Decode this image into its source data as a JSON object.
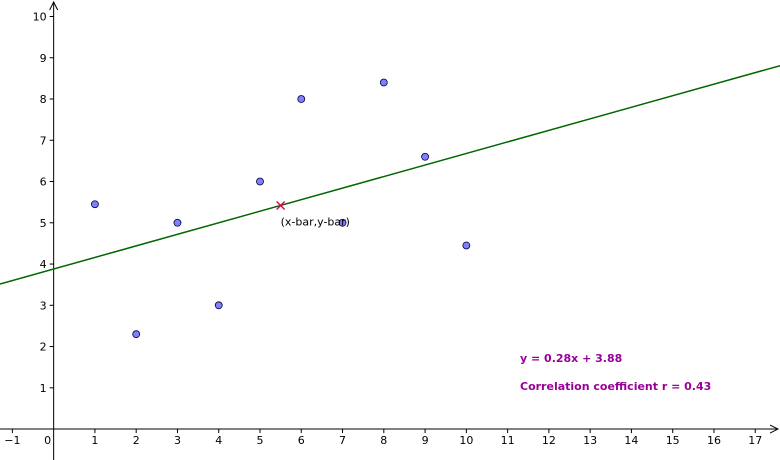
{
  "chart_data": {
    "type": "scatter",
    "title": "",
    "xlabel": "",
    "ylabel": "",
    "xlim": [
      -1.3,
      17.6
    ],
    "ylim": [
      -0.75,
      10.4
    ],
    "x_ticks": [
      -1,
      0,
      1,
      2,
      3,
      4,
      5,
      6,
      7,
      8,
      9,
      10,
      11,
      12,
      13,
      14,
      15,
      16,
      17
    ],
    "x_tick_labels": [
      "−1",
      "0",
      "1",
      "2",
      "3",
      "4",
      "5",
      "6",
      "7",
      "8",
      "9",
      "10",
      "11",
      "12",
      "13",
      "14",
      "15",
      "16",
      "17"
    ],
    "y_ticks": [
      1,
      2,
      3,
      4,
      5,
      6,
      7,
      8,
      9,
      10
    ],
    "y_tick_labels": [
      "1",
      "2",
      "3",
      "4",
      "5",
      "6",
      "7",
      "8",
      "9",
      "10"
    ],
    "grid": false,
    "points": [
      {
        "x": 1,
        "y": 5.45
      },
      {
        "x": 2,
        "y": 2.3
      },
      {
        "x": 3,
        "y": 5.0
      },
      {
        "x": 4,
        "y": 3.0
      },
      {
        "x": 5,
        "y": 6.0
      },
      {
        "x": 6,
        "y": 8.0
      },
      {
        "x": 7,
        "y": 5.0
      },
      {
        "x": 8,
        "y": 8.4
      },
      {
        "x": 9,
        "y": 6.6
      },
      {
        "x": 10,
        "y": 4.45
      }
    ],
    "regression": {
      "slope": 0.28,
      "intercept": 3.88
    },
    "mean_point": {
      "x": 5.5,
      "y": 5.42,
      "label": "(x-bar,y-bar)"
    },
    "equation_text": "y = 0.28x + 3.88",
    "correlation_text": "Correlation coefficient r = 0.43",
    "colors": {
      "axis": "#000000",
      "point_fill": "#7f7fff",
      "point_stroke": "#000033",
      "line": "#006600",
      "mean_marker": "#e0004d",
      "annotation": "#990099"
    }
  }
}
